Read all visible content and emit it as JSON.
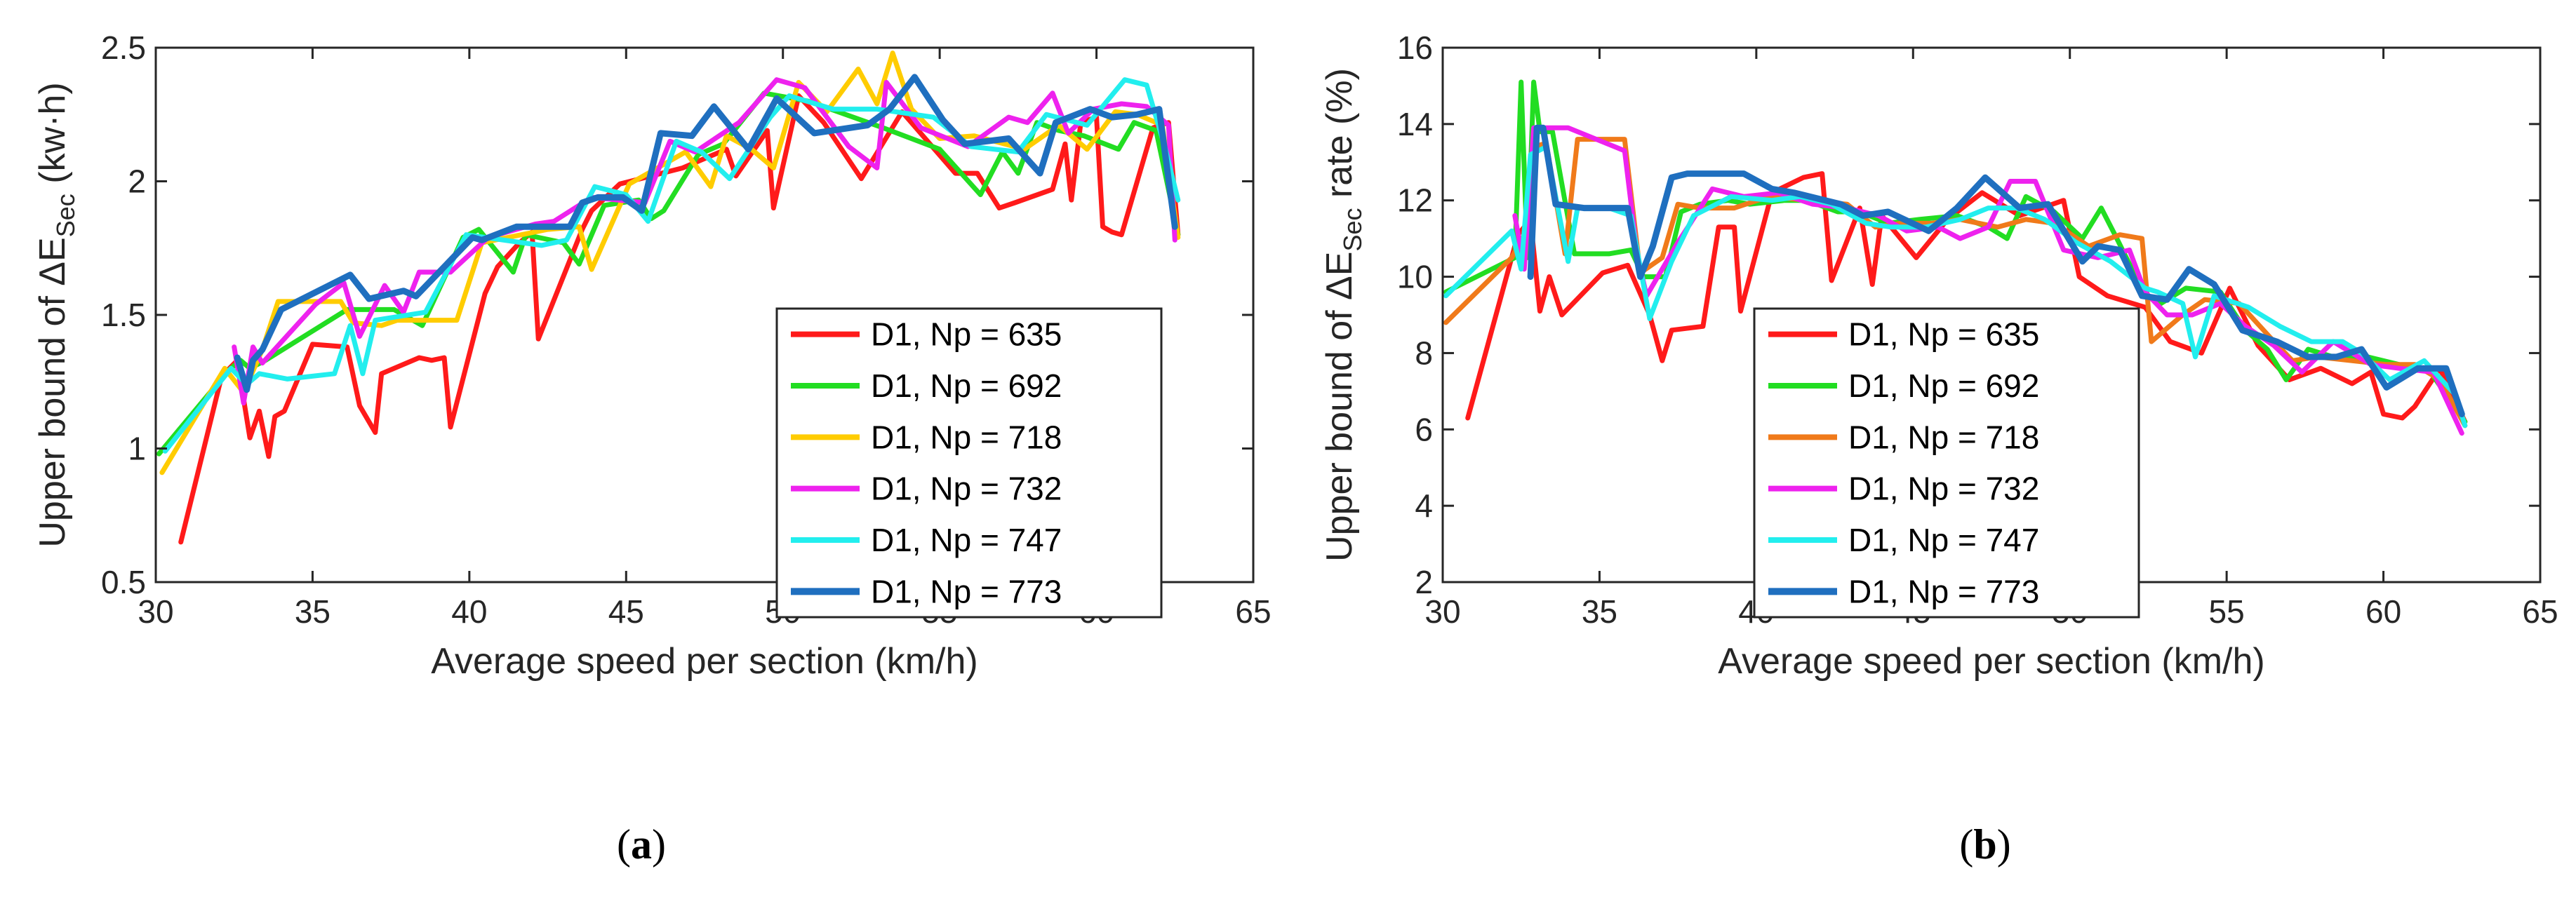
{
  "chart_data": [
    {
      "id": "a",
      "type": "line",
      "caption": "a",
      "xlabel": "Average speed per section (km/h)",
      "ylabel_parts": [
        "Upper bound of ΔE",
        "Sec",
        " (kw·h)"
      ],
      "xlim": [
        30,
        65
      ],
      "ylim": [
        0.5,
        2.5
      ],
      "xticks": [
        30,
        35,
        40,
        45,
        50,
        55,
        60,
        65
      ],
      "yticks": [
        0.5,
        1,
        1.5,
        2,
        2.5
      ],
      "ytick_labels": [
        "0.5",
        "1",
        "1.5",
        "2",
        "2.5"
      ],
      "legend_position": "bottom-right",
      "series": [
        {
          "name": "D1, Np = 635",
          "color": "#ff1a1a",
          "width": 7,
          "x": [
            30.8,
            32.1,
            32.6,
            33.0,
            33.3,
            33.6,
            33.8,
            34.1,
            35.0,
            36.1,
            36.5,
            37.0,
            37.2,
            38.4,
            38.8,
            39.2,
            39.4,
            40.5,
            40.9,
            41.6,
            42.0,
            42.2,
            43.6,
            43.9,
            44.8,
            46.8,
            48.2,
            48.5,
            49.5,
            49.7,
            50.5,
            51.3,
            52.5,
            53.8,
            55.5,
            56.2,
            56.9,
            57.4,
            58.6,
            59.0,
            59.2,
            59.5,
            60.0,
            60.2,
            60.5,
            60.8,
            61.4,
            61.8,
            62.3,
            62.6
          ],
          "y": [
            0.65,
            1.27,
            1.33,
            1.04,
            1.14,
            0.97,
            1.12,
            1.14,
            1.39,
            1.38,
            1.16,
            1.06,
            1.28,
            1.34,
            1.33,
            1.34,
            1.08,
            1.58,
            1.68,
            1.77,
            1.81,
            1.41,
            1.82,
            1.89,
            1.99,
            2.05,
            2.12,
            2.02,
            2.19,
            1.9,
            2.32,
            2.22,
            2.01,
            2.26,
            2.03,
            2.03,
            1.9,
            1.92,
            1.97,
            2.14,
            1.93,
            2.22,
            2.24,
            1.83,
            1.81,
            1.8,
            2.04,
            2.2,
            2.22,
            1.8
          ]
        },
        {
          "name": "D1, Np = 692",
          "color": "#22dd22",
          "width": 7,
          "x": [
            30.1,
            32.3,
            32.7,
            33.0,
            33.5,
            36.1,
            37.6,
            38.5,
            39.8,
            40.3,
            41.4,
            41.8,
            43.0,
            43.5,
            44.3,
            45.4,
            45.8,
            46.2,
            47.3,
            48.1,
            49.4,
            50.8,
            53.2,
            55.0,
            56.3,
            57.0,
            57.5,
            58.1,
            58.8,
            59.6,
            60.7,
            61.2,
            61.9,
            62.6
          ],
          "y": [
            0.98,
            1.29,
            1.33,
            1.3,
            1.33,
            1.52,
            1.52,
            1.46,
            1.79,
            1.82,
            1.66,
            1.8,
            1.77,
            1.69,
            1.91,
            1.93,
            1.86,
            1.89,
            2.1,
            2.14,
            2.33,
            2.3,
            2.2,
            2.12,
            1.95,
            2.11,
            2.03,
            2.22,
            2.19,
            2.17,
            2.12,
            2.22,
            2.19,
            1.8
          ]
        },
        {
          "name": "D1, Np = 718",
          "color": "#ffcc00",
          "width": 7,
          "x": [
            30.2,
            32.2,
            32.8,
            33.4,
            33.9,
            35.9,
            36.3,
            37.2,
            37.7,
            39.6,
            40.4,
            42.5,
            43.5,
            43.9,
            45.1,
            46.9,
            47.7,
            48.2,
            49.0,
            49.7,
            50.5,
            51.4,
            52.4,
            53.0,
            53.5,
            54.1,
            55.0,
            56.1,
            57.7,
            58.8,
            59.7,
            60.6,
            61.3,
            62.1,
            62.6
          ],
          "y": [
            0.91,
            1.3,
            1.21,
            1.37,
            1.55,
            1.55,
            1.47,
            1.46,
            1.48,
            1.48,
            1.77,
            1.82,
            1.83,
            1.67,
            1.99,
            2.11,
            1.98,
            2.17,
            2.12,
            2.05,
            2.37,
            2.26,
            2.42,
            2.29,
            2.48,
            2.27,
            2.16,
            2.17,
            2.12,
            2.21,
            2.12,
            2.26,
            2.25,
            2.21,
            1.79
          ]
        },
        {
          "name": "D1, Np = 732",
          "color": "#ee22ee",
          "width": 7,
          "x": [
            32.5,
            32.8,
            33.1,
            33.4,
            35.1,
            36.0,
            36.5,
            37.3,
            37.9,
            38.4,
            39.4,
            40.6,
            42.1,
            42.7,
            43.9,
            45.6,
            46.4,
            47.2,
            48.6,
            49.8,
            50.7,
            52.1,
            53.0,
            53.3,
            54.4,
            55.9,
            57.2,
            57.8,
            58.6,
            59.1,
            59.9,
            60.8,
            61.6,
            62.3,
            62.5
          ],
          "y": [
            1.38,
            1.17,
            1.38,
            1.32,
            1.54,
            1.62,
            1.42,
            1.61,
            1.51,
            1.66,
            1.66,
            1.79,
            1.84,
            1.85,
            1.94,
            1.92,
            2.15,
            2.11,
            2.22,
            2.38,
            2.35,
            2.13,
            2.05,
            2.37,
            2.2,
            2.13,
            2.24,
            2.22,
            2.33,
            2.18,
            2.27,
            2.29,
            2.28,
            2.21,
            1.78
          ]
        },
        {
          "name": "D1, Np = 747",
          "color": "#22eeee",
          "width": 7,
          "x": [
            30.3,
            32.4,
            32.9,
            33.3,
            34.2,
            35.7,
            36.2,
            36.6,
            37.0,
            38.6,
            39.9,
            40.5,
            42.3,
            43.1,
            44.0,
            45.0,
            45.7,
            46.6,
            47.4,
            48.3,
            49.6,
            50.2,
            51.6,
            53.0,
            54.8,
            56.0,
            57.5,
            58.4,
            59.7,
            60.9,
            61.6,
            62.2,
            62.6
          ],
          "y": [
            0.99,
            1.3,
            1.24,
            1.28,
            1.26,
            1.28,
            1.46,
            1.28,
            1.48,
            1.51,
            1.8,
            1.79,
            1.76,
            1.78,
            1.98,
            1.95,
            1.85,
            2.15,
            2.11,
            2.01,
            2.24,
            2.32,
            2.27,
            2.27,
            2.24,
            2.13,
            2.11,
            2.25,
            2.21,
            2.38,
            2.36,
            2.12,
            1.93
          ]
        },
        {
          "name": "D1, Np = 773",
          "color": "#1f6fbf",
          "width": 9,
          "x": [
            32.6,
            32.9,
            33.1,
            33.4,
            34.0,
            36.2,
            36.8,
            37.9,
            38.3,
            40.1,
            40.4,
            41.5,
            43.2,
            43.6,
            44.1,
            44.9,
            45.5,
            46.1,
            47.1,
            47.8,
            48.9,
            49.8,
            51.0,
            52.7,
            53.4,
            54.2,
            55.1,
            55.8,
            57.2,
            58.2,
            58.7,
            59.8,
            60.5,
            61.3,
            62.0,
            62.5
          ],
          "y": [
            1.34,
            1.22,
            1.33,
            1.37,
            1.52,
            1.65,
            1.56,
            1.59,
            1.57,
            1.79,
            1.78,
            1.83,
            1.83,
            1.92,
            1.94,
            1.94,
            1.89,
            2.18,
            2.17,
            2.28,
            2.12,
            2.31,
            2.18,
            2.21,
            2.27,
            2.39,
            2.23,
            2.14,
            2.16,
            2.03,
            2.22,
            2.27,
            2.24,
            2.25,
            2.27,
            1.83
          ]
        }
      ]
    },
    {
      "id": "b",
      "type": "line",
      "caption": "b",
      "xlabel": "Average speed per section (km/h)",
      "ylabel_parts": [
        "Upper bound of ΔE",
        "Sec",
        " rate (%)"
      ],
      "xlim": [
        30,
        65
      ],
      "ylim": [
        2,
        16
      ],
      "xticks": [
        30,
        35,
        40,
        45,
        50,
        55,
        60,
        65
      ],
      "yticks": [
        2,
        4,
        6,
        8,
        10,
        12,
        14,
        16
      ],
      "ytick_labels": [
        "2",
        "4",
        "6",
        "8",
        "10",
        "12",
        "14",
        "16"
      ],
      "legend_position": "bottom-left",
      "series": [
        {
          "name": "D1, Np = 635",
          "color": "#ff1a1a",
          "width": 7,
          "x": [
            30.8,
            32.4,
            32.8,
            33.1,
            33.4,
            33.8,
            35.1,
            35.9,
            36.6,
            37.0,
            37.3,
            38.3,
            38.8,
            39.3,
            39.5,
            40.5,
            41.5,
            42.1,
            42.4,
            43.3,
            43.7,
            44.0,
            45.1,
            46.1,
            47.2,
            48.4,
            49.8,
            50.3,
            51.2,
            52.4,
            53.2,
            54.2,
            55.1,
            56.0,
            57.0,
            58.0,
            59.0,
            59.6,
            60.0,
            60.6,
            61.0,
            61.8,
            62.6
          ],
          "y": [
            6.3,
            11.1,
            11.5,
            9.1,
            10.0,
            9.0,
            10.1,
            10.3,
            9.0,
            7.8,
            8.6,
            8.7,
            11.3,
            11.3,
            9.1,
            12.2,
            12.6,
            12.7,
            9.9,
            11.8,
            9.8,
            11.6,
            10.5,
            11.5,
            12.2,
            11.6,
            12.0,
            10.0,
            9.5,
            9.2,
            8.3,
            8.0,
            9.7,
            8.2,
            7.3,
            7.6,
            7.2,
            7.5,
            6.4,
            6.3,
            6.6,
            7.6,
            6.2
          ]
        },
        {
          "name": "D1, Np = 692",
          "color": "#22dd22",
          "width": 7,
          "x": [
            30.1,
            32.3,
            32.5,
            32.7,
            32.9,
            33.1,
            33.5,
            34.2,
            35.3,
            36.0,
            36.4,
            37.1,
            37.6,
            38.2,
            39.1,
            39.8,
            40.9,
            41.6,
            42.6,
            43.3,
            44.2,
            45.2,
            46.4,
            47.4,
            48.0,
            48.6,
            49.5,
            50.4,
            51.0,
            51.5,
            52.4,
            52.9,
            53.7,
            54.8,
            55.6,
            56.3,
            56.9,
            57.6,
            58.4,
            59.5,
            60.5,
            61.5,
            62.6
          ],
          "y": [
            9.6,
            10.5,
            15.1,
            10.5,
            15.1,
            13.8,
            13.8,
            10.6,
            10.6,
            10.7,
            10.0,
            10.0,
            11.7,
            11.9,
            12.0,
            11.9,
            12.0,
            12.0,
            11.7,
            11.7,
            11.4,
            11.5,
            11.6,
            11.3,
            11.0,
            12.1,
            11.7,
            11.0,
            11.8,
            11.0,
            9.5,
            9.3,
            9.7,
            9.6,
            8.6,
            8.1,
            7.3,
            8.1,
            7.9,
            7.9,
            7.7,
            7.5,
            6.2
          ]
        },
        {
          "name": "D1, Np = 718",
          "color": "#f07a1a",
          "width": 7,
          "x": [
            30.1,
            32.2,
            32.6,
            32.9,
            33.3,
            33.9,
            34.3,
            35.8,
            36.3,
            37.0,
            37.5,
            38.2,
            39.3,
            40.4,
            41.6,
            42.9,
            43.8,
            44.6,
            45.6,
            46.5,
            47.7,
            48.6,
            49.5,
            50.6,
            51.6,
            52.3,
            52.6,
            53.6,
            54.3,
            55.4,
            56.4,
            57.1,
            57.9,
            59.0,
            60.1,
            61.0,
            61.8,
            62.6
          ],
          "y": [
            8.8,
            10.5,
            11.1,
            13.4,
            13.5,
            10.6,
            13.6,
            13.6,
            10.1,
            10.5,
            11.9,
            11.8,
            11.8,
            12.1,
            12.0,
            11.9,
            11.3,
            11.4,
            11.4,
            11.5,
            11.3,
            11.5,
            11.4,
            10.8,
            11.1,
            11.0,
            8.3,
            9.0,
            9.4,
            9.3,
            8.4,
            7.8,
            7.9,
            7.8,
            7.7,
            7.7,
            7.3,
            6.1
          ]
        },
        {
          "name": "D1, Np = 732",
          "color": "#ee22ee",
          "width": 7,
          "x": [
            32.3,
            32.6,
            32.9,
            33.2,
            34.0,
            35.5,
            35.8,
            36.2,
            36.5,
            37.5,
            37.9,
            38.6,
            39.6,
            40.7,
            41.8,
            42.9,
            43.9,
            44.8,
            45.8,
            46.5,
            47.4,
            48.1,
            48.9,
            49.8,
            50.9,
            51.9,
            52.4,
            53.1,
            53.9,
            54.8,
            55.6,
            56.5,
            57.4,
            58.4,
            59.6,
            60.5,
            61.6,
            62.5
          ],
          "y": [
            11.6,
            10.2,
            13.9,
            13.9,
            13.9,
            13.4,
            13.3,
            10.6,
            9.5,
            10.9,
            11.4,
            12.3,
            12.1,
            12.2,
            11.9,
            11.8,
            11.6,
            11.2,
            11.3,
            11.0,
            11.3,
            12.5,
            12.5,
            10.7,
            10.5,
            10.7,
            9.6,
            9.0,
            9.0,
            9.3,
            8.7,
            8.2,
            7.5,
            8.3,
            7.7,
            7.6,
            7.5,
            5.9
          ]
        },
        {
          "name": "D1, Np = 747",
          "color": "#22eeee",
          "width": 7,
          "x": [
            30.1,
            32.2,
            32.5,
            32.8,
            33.3,
            34.0,
            34.3,
            35.3,
            36.0,
            36.6,
            37.3,
            38.0,
            39.2,
            40.5,
            41.4,
            42.4,
            43.5,
            44.3,
            45.4,
            46.5,
            47.4,
            48.3,
            49.2,
            50.2,
            51.3,
            52.4,
            52.8,
            53.6,
            54.0,
            54.6,
            55.7,
            56.7,
            57.7,
            58.7,
            59.3,
            60.2,
            61.3,
            62.3,
            62.6
          ],
          "y": [
            9.5,
            11.2,
            10.2,
            13.2,
            13.4,
            10.4,
            11.8,
            11.8,
            11.6,
            8.9,
            10.4,
            11.6,
            12.1,
            12.0,
            12.1,
            11.9,
            11.4,
            11.3,
            11.3,
            11.5,
            11.8,
            11.8,
            11.5,
            10.9,
            10.4,
            9.7,
            9.6,
            9.3,
            7.9,
            9.5,
            9.2,
            8.7,
            8.3,
            8.3,
            8.0,
            7.3,
            7.8,
            6.9,
            6.1
          ]
        },
        {
          "name": "D1, Np = 773",
          "color": "#1f6fbf",
          "width": 9,
          "x": [
            32.8,
            33.0,
            33.2,
            33.6,
            34.5,
            35.9,
            36.3,
            36.7,
            37.3,
            37.8,
            38.4,
            39.6,
            40.5,
            41.2,
            42.7,
            43.4,
            44.2,
            45.5,
            46.4,
            47.3,
            48.4,
            49.3,
            50.4,
            50.9,
            51.6,
            52.3,
            53.1,
            53.8,
            54.6,
            55.5,
            56.6,
            57.6,
            58.5,
            59.3,
            60.1,
            61.1,
            62.0,
            62.5
          ],
          "y": [
            10.0,
            13.9,
            13.9,
            11.9,
            11.8,
            11.8,
            10.0,
            10.8,
            12.6,
            12.7,
            12.7,
            12.7,
            12.3,
            12.2,
            11.9,
            11.6,
            11.7,
            11.2,
            11.8,
            12.6,
            11.8,
            11.9,
            10.4,
            10.8,
            10.7,
            9.5,
            9.4,
            10.2,
            9.8,
            8.6,
            8.3,
            7.9,
            7.9,
            8.1,
            7.1,
            7.6,
            7.6,
            6.4
          ]
        }
      ]
    }
  ]
}
